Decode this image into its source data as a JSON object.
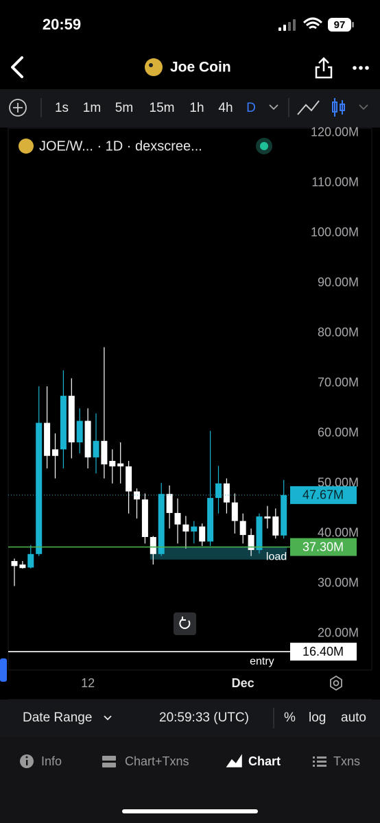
{
  "status_bar": {
    "time": "20:59",
    "battery": "97"
  },
  "header": {
    "title": "Joe Coin"
  },
  "toolbar": {
    "intervals": [
      "1s",
      "1m",
      "5m",
      "15m",
      "1h",
      "4h",
      "D"
    ]
  },
  "chart_data": {
    "type": "candlestick",
    "title": "JOE/W... · 1D · dexscree...",
    "categories": [
      null,
      null,
      null,
      null,
      null,
      null,
      null,
      null,
      null,
      "12",
      null,
      null,
      null,
      null,
      null,
      null,
      null,
      null,
      null,
      null,
      null,
      null,
      null,
      null,
      null,
      null,
      null,
      null,
      "Dec",
      null,
      null,
      null,
      null,
      null
    ],
    "open": [
      34.5,
      33.8,
      33.2,
      35.9,
      62.1,
      56.8,
      56.8,
      67.5,
      58.2,
      62.5,
      55.2,
      58.5,
      54.5,
      54.0,
      53.4,
      48.4,
      46.8,
      39.3,
      35.9,
      47.9,
      44.1,
      41.8,
      40.4,
      41.4,
      38.4,
      47.1,
      50.0,
      46.2,
      42.5,
      39.7,
      36.7,
      43.4,
      43.4,
      39.6
    ],
    "high": [
      35.0,
      34.5,
      37.7,
      69.4,
      69.4,
      60.0,
      72.6,
      71.0,
      65.0,
      65.0,
      64.0,
      77.2,
      56.8,
      58.2,
      54.5,
      49.0,
      48.0,
      39.5,
      50.1,
      49.6,
      47.0,
      43.5,
      42.5,
      42.0,
      60.5,
      53.5,
      51.0,
      48.0,
      44.0,
      41.0,
      44.0,
      45.5,
      45.0,
      50.7
    ],
    "low": [
      29.5,
      33.0,
      33.0,
      35.5,
      53.0,
      51.0,
      53.0,
      55.0,
      56.0,
      53.0,
      52.0,
      51.0,
      50.0,
      50.0,
      44.0,
      43.0,
      38.0,
      33.8,
      35.5,
      41.0,
      38.0,
      37.0,
      38.0,
      37.5,
      37.5,
      44.0,
      44.0,
      40.0,
      38.0,
      35.5,
      36.0,
      41.0,
      39.0,
      39.0
    ],
    "close": [
      33.5,
      33.1,
      35.9,
      62.1,
      55.5,
      55.5,
      67.5,
      58.2,
      62.5,
      55.2,
      58.5,
      53.8,
      53.4,
      53.4,
      48.4,
      46.8,
      39.3,
      35.9,
      47.9,
      44.1,
      41.8,
      40.4,
      41.4,
      38.4,
      47.1,
      50.0,
      46.2,
      42.5,
      39.7,
      36.7,
      43.4,
      43.0,
      39.6,
      47.67
    ],
    "up_color": "#1ab3cf",
    "down_color": "#ffffff",
    "ylim": [
      13.0,
      120.8
    ],
    "yticks": [
      {
        "value": 20,
        "label": "20.00M"
      },
      {
        "value": 30,
        "label": "30.00M"
      },
      {
        "value": 40,
        "label": "40.00M"
      },
      {
        "value": 50,
        "label": "50.00M"
      },
      {
        "value": 60,
        "label": "60.00M"
      },
      {
        "value": 70,
        "label": "70.00M"
      },
      {
        "value": 80,
        "label": "80.00M"
      },
      {
        "value": 90,
        "label": "90.00M"
      },
      {
        "value": 100,
        "label": "100.00M"
      },
      {
        "value": 110,
        "label": "110.00M"
      },
      {
        "value": 120,
        "label": "120.00M"
      }
    ],
    "price_lines": [
      {
        "value": 47.67,
        "label": "47.67M",
        "color": "#1ab3cf",
        "style": "dotted"
      },
      {
        "value": 37.3,
        "label": "37.30M",
        "color": "#4caf50",
        "style": "solid"
      },
      {
        "value": 16.4,
        "label": "16.40M",
        "color": "#ffffff",
        "style": "solid"
      }
    ],
    "zone": {
      "from": 17,
      "to": 33,
      "low": 34.8,
      "high": 37.3,
      "color": "#0f3f46"
    },
    "annotations": [
      {
        "text": "load",
        "value": 35.3,
        "index": 31
      },
      {
        "text": "entry",
        "value": 14.4,
        "index": 29
      }
    ]
  },
  "bottom_bar": {
    "date_range": "Date Range",
    "time": "20:59:33 (UTC)",
    "percent": "%",
    "log": "log",
    "auto": "auto"
  },
  "tabs": [
    "Info",
    "Chart+Txns",
    "Chart",
    "Txns"
  ]
}
